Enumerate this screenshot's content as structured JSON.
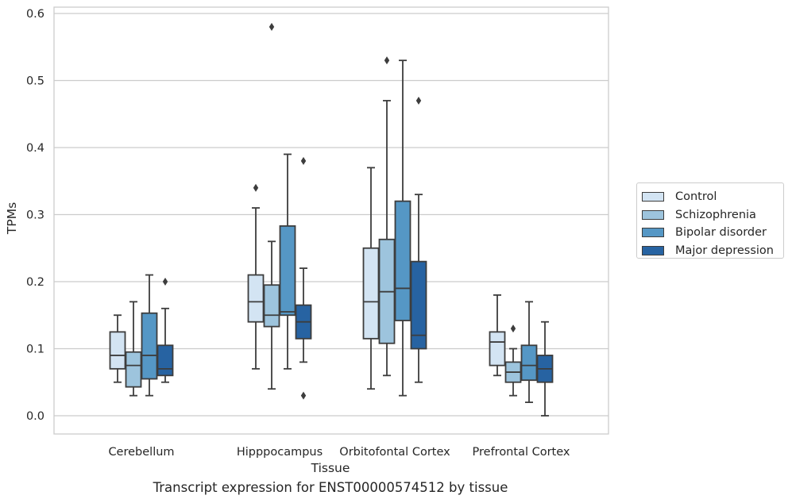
{
  "chart_data": {
    "type": "boxplot",
    "xlabel": "Tissue",
    "ylabel": "TPMs",
    "caption": "Transcript expression for ENST00000574512 by tissue",
    "ylim": [
      -0.028,
      0.612
    ],
    "yticks": [
      "0.0",
      "0.1",
      "0.2",
      "0.3",
      "0.4",
      "0.5",
      "0.6"
    ],
    "ytick_values": [
      0,
      0.1,
      0.2,
      0.3,
      0.4,
      0.5,
      0.6
    ],
    "grid": "horizontal",
    "legend_position": "right",
    "categories": [
      "Cerebellum",
      "Hipppocampus",
      "Orbitofontal Cortex",
      "Prefrontal Cortex"
    ],
    "series": [
      {
        "name": "Control",
        "color": "#d3e4f3",
        "boxes": [
          {
            "whislo": 0.05,
            "q1": 0.07,
            "med": 0.09,
            "q3": 0.125,
            "whishi": 0.15,
            "fliers": []
          },
          {
            "whislo": 0.07,
            "q1": 0.14,
            "med": 0.17,
            "q3": 0.21,
            "whishi": 0.31,
            "fliers": [
              0.34
            ]
          },
          {
            "whislo": 0.04,
            "q1": 0.115,
            "med": 0.17,
            "q3": 0.25,
            "whishi": 0.37,
            "fliers": []
          },
          {
            "whislo": 0.06,
            "q1": 0.075,
            "med": 0.11,
            "q3": 0.125,
            "whishi": 0.18,
            "fliers": []
          }
        ]
      },
      {
        "name": "Schizophrenia",
        "color": "#9dc4dd",
        "boxes": [
          {
            "whislo": 0.03,
            "q1": 0.043,
            "med": 0.075,
            "q3": 0.095,
            "whishi": 0.17,
            "fliers": []
          },
          {
            "whislo": 0.04,
            "q1": 0.133,
            "med": 0.15,
            "q3": 0.195,
            "whishi": 0.26,
            "fliers": [
              0.58
            ]
          },
          {
            "whislo": 0.06,
            "q1": 0.108,
            "med": 0.185,
            "q3": 0.263,
            "whishi": 0.47,
            "fliers": [
              0.53
            ]
          },
          {
            "whislo": 0.03,
            "q1": 0.05,
            "med": 0.065,
            "q3": 0.08,
            "whishi": 0.1,
            "fliers": [
              0.13
            ]
          }
        ]
      },
      {
        "name": "Bipolar disorder",
        "color": "#5597c5",
        "boxes": [
          {
            "whislo": 0.03,
            "q1": 0.055,
            "med": 0.09,
            "q3": 0.153,
            "whishi": 0.21,
            "fliers": []
          },
          {
            "whislo": 0.07,
            "q1": 0.15,
            "med": 0.155,
            "q3": 0.283,
            "whishi": 0.39,
            "fliers": []
          },
          {
            "whislo": 0.03,
            "q1": 0.142,
            "med": 0.19,
            "q3": 0.32,
            "whishi": 0.53,
            "fliers": []
          },
          {
            "whislo": 0.02,
            "q1": 0.053,
            "med": 0.075,
            "q3": 0.105,
            "whishi": 0.17,
            "fliers": []
          }
        ]
      },
      {
        "name": "Major depression",
        "color": "#2763a2",
        "boxes": [
          {
            "whislo": 0.05,
            "q1": 0.06,
            "med": 0.07,
            "q3": 0.105,
            "whishi": 0.16,
            "fliers": [
              0.2
            ]
          },
          {
            "whislo": 0.08,
            "q1": 0.115,
            "med": 0.14,
            "q3": 0.165,
            "whishi": 0.22,
            "fliers": [
              0.38,
              0.03
            ]
          },
          {
            "whislo": 0.05,
            "q1": 0.1,
            "med": 0.12,
            "q3": 0.23,
            "whishi": 0.33,
            "fliers": [
              0.47
            ]
          },
          {
            "whislo": 0.0,
            "q1": 0.05,
            "med": 0.07,
            "q3": 0.09,
            "whishi": 0.14,
            "fliers": []
          }
        ]
      }
    ]
  }
}
